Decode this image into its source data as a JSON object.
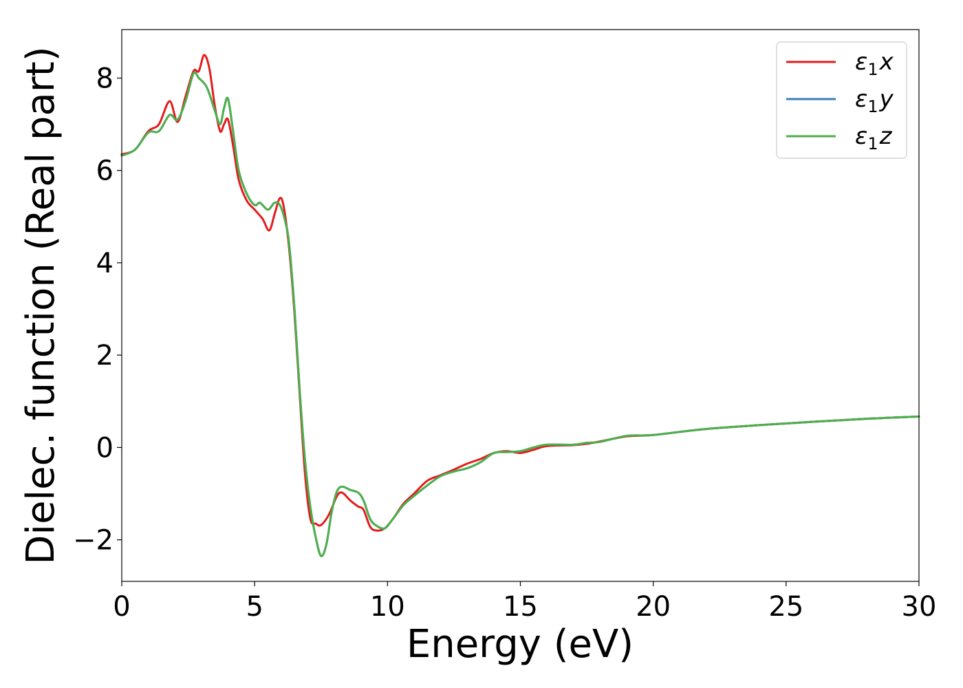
{
  "chart_data": {
    "type": "line",
    "title": "",
    "xlabel": "Energy (eV)",
    "ylabel": "Dielec. function (Real part)",
    "xlim": [
      0,
      30
    ],
    "ylim": [
      -2.9,
      9.05
    ],
    "xticks": [
      0,
      5,
      10,
      15,
      20,
      25,
      30
    ],
    "xtick_labels": [
      "0",
      "5",
      "10",
      "15",
      "20",
      "25",
      "30"
    ],
    "yticks": [
      -2,
      0,
      2,
      4,
      6,
      8
    ],
    "ytick_labels": [
      "−2",
      "0",
      "2",
      "4",
      "6",
      "8"
    ],
    "grid": false,
    "legend_position": "top-right",
    "series": [
      {
        "name": "ε₁x",
        "legend_main": "ε",
        "legend_sub": "1",
        "legend_var": "x",
        "color": "#e41a1c",
        "points": [
          [
            0,
            6.35
          ],
          [
            0.5,
            6.45
          ],
          [
            1.0,
            6.85
          ],
          [
            1.4,
            7.0
          ],
          [
            1.8,
            7.5
          ],
          [
            2.1,
            7.05
          ],
          [
            2.4,
            7.6
          ],
          [
            2.7,
            8.15
          ],
          [
            2.9,
            8.15
          ],
          [
            3.1,
            8.5
          ],
          [
            3.3,
            8.2
          ],
          [
            3.5,
            7.4
          ],
          [
            3.7,
            6.85
          ],
          [
            3.85,
            7.0
          ],
          [
            4.0,
            7.1
          ],
          [
            4.2,
            6.5
          ],
          [
            4.4,
            5.8
          ],
          [
            4.7,
            5.35
          ],
          [
            5.0,
            5.15
          ],
          [
            5.3,
            4.95
          ],
          [
            5.55,
            4.7
          ],
          [
            5.75,
            5.05
          ],
          [
            5.95,
            5.4
          ],
          [
            6.1,
            5.2
          ],
          [
            6.3,
            4.3
          ],
          [
            6.5,
            2.9
          ],
          [
            6.7,
            1.1
          ],
          [
            6.9,
            -0.6
          ],
          [
            7.1,
            -1.55
          ],
          [
            7.3,
            -1.65
          ],
          [
            7.5,
            -1.68
          ],
          [
            7.8,
            -1.45
          ],
          [
            8.1,
            -1.05
          ],
          [
            8.3,
            -0.98
          ],
          [
            8.6,
            -1.15
          ],
          [
            8.9,
            -1.28
          ],
          [
            9.1,
            -1.35
          ],
          [
            9.35,
            -1.72
          ],
          [
            9.6,
            -1.8
          ],
          [
            9.9,
            -1.75
          ],
          [
            10.2,
            -1.55
          ],
          [
            10.6,
            -1.22
          ],
          [
            11.0,
            -1.0
          ],
          [
            11.5,
            -0.72
          ],
          [
            12.0,
            -0.6
          ],
          [
            12.5,
            -0.48
          ],
          [
            13.0,
            -0.35
          ],
          [
            13.5,
            -0.25
          ],
          [
            14.0,
            -0.12
          ],
          [
            14.5,
            -0.08
          ],
          [
            15.0,
            -0.12
          ],
          [
            15.5,
            -0.05
          ],
          [
            16.0,
            0.03
          ],
          [
            17.0,
            0.05
          ],
          [
            17.5,
            0.08
          ],
          [
            18.0,
            0.13
          ],
          [
            19.0,
            0.24
          ],
          [
            20.0,
            0.27
          ],
          [
            22.0,
            0.4
          ],
          [
            25.0,
            0.52
          ],
          [
            28.0,
            0.62
          ],
          [
            30.0,
            0.67
          ]
        ]
      },
      {
        "name": "ε₁y",
        "legend_main": "ε",
        "legend_sub": "1",
        "legend_var": "y",
        "color": "#377eb8",
        "points": [
          [
            0,
            6.32
          ],
          [
            0.5,
            6.45
          ],
          [
            1.0,
            6.82
          ],
          [
            1.4,
            6.85
          ],
          [
            1.8,
            7.2
          ],
          [
            2.1,
            7.1
          ],
          [
            2.4,
            7.5
          ],
          [
            2.7,
            8.1
          ],
          [
            2.9,
            8.0
          ],
          [
            3.2,
            7.8
          ],
          [
            3.5,
            7.3
          ],
          [
            3.7,
            7.0
          ],
          [
            3.85,
            7.35
          ],
          [
            4.0,
            7.55
          ],
          [
            4.2,
            6.8
          ],
          [
            4.4,
            6.0
          ],
          [
            4.7,
            5.5
          ],
          [
            5.0,
            5.25
          ],
          [
            5.2,
            5.3
          ],
          [
            5.5,
            5.15
          ],
          [
            5.75,
            5.3
          ],
          [
            5.95,
            5.25
          ],
          [
            6.15,
            4.9
          ],
          [
            6.3,
            4.4
          ],
          [
            6.5,
            3.0
          ],
          [
            6.7,
            1.2
          ],
          [
            6.9,
            -0.3
          ],
          [
            7.1,
            -1.3
          ],
          [
            7.3,
            -1.95
          ],
          [
            7.5,
            -2.35
          ],
          [
            7.7,
            -2.1
          ],
          [
            7.9,
            -1.4
          ],
          [
            8.1,
            -0.95
          ],
          [
            8.3,
            -0.85
          ],
          [
            8.6,
            -0.92
          ],
          [
            8.9,
            -0.98
          ],
          [
            9.1,
            -1.15
          ],
          [
            9.35,
            -1.55
          ],
          [
            9.6,
            -1.7
          ],
          [
            9.9,
            -1.75
          ],
          [
            10.2,
            -1.55
          ],
          [
            10.6,
            -1.25
          ],
          [
            11.0,
            -1.05
          ],
          [
            11.5,
            -0.82
          ],
          [
            12.0,
            -0.62
          ],
          [
            12.5,
            -0.52
          ],
          [
            13.0,
            -0.45
          ],
          [
            13.5,
            -0.32
          ],
          [
            14.0,
            -0.12
          ],
          [
            14.5,
            -0.1
          ],
          [
            15.0,
            -0.08
          ],
          [
            15.5,
            0.0
          ],
          [
            16.0,
            0.06
          ],
          [
            17.0,
            0.06
          ],
          [
            17.5,
            0.1
          ],
          [
            18.0,
            0.12
          ],
          [
            19.0,
            0.25
          ],
          [
            20.0,
            0.27
          ],
          [
            22.0,
            0.4
          ],
          [
            25.0,
            0.52
          ],
          [
            28.0,
            0.62
          ],
          [
            30.0,
            0.67
          ]
        ]
      },
      {
        "name": "ε₁z",
        "legend_main": "ε",
        "legend_sub": "1",
        "legend_var": "z",
        "color": "#4daf4a",
        "points": [
          [
            0,
            6.32
          ],
          [
            0.5,
            6.45
          ],
          [
            1.0,
            6.82
          ],
          [
            1.4,
            6.85
          ],
          [
            1.8,
            7.2
          ],
          [
            2.1,
            7.1
          ],
          [
            2.4,
            7.5
          ],
          [
            2.7,
            8.1
          ],
          [
            2.9,
            8.0
          ],
          [
            3.2,
            7.8
          ],
          [
            3.5,
            7.3
          ],
          [
            3.7,
            7.0
          ],
          [
            3.85,
            7.35
          ],
          [
            4.0,
            7.55
          ],
          [
            4.2,
            6.8
          ],
          [
            4.4,
            6.0
          ],
          [
            4.7,
            5.5
          ],
          [
            5.0,
            5.25
          ],
          [
            5.2,
            5.3
          ],
          [
            5.5,
            5.15
          ],
          [
            5.75,
            5.3
          ],
          [
            5.95,
            5.25
          ],
          [
            6.15,
            4.9
          ],
          [
            6.3,
            4.4
          ],
          [
            6.5,
            3.0
          ],
          [
            6.7,
            1.2
          ],
          [
            6.9,
            -0.3
          ],
          [
            7.1,
            -1.3
          ],
          [
            7.3,
            -1.95
          ],
          [
            7.5,
            -2.35
          ],
          [
            7.7,
            -2.1
          ],
          [
            7.9,
            -1.4
          ],
          [
            8.1,
            -0.95
          ],
          [
            8.3,
            -0.85
          ],
          [
            8.6,
            -0.92
          ],
          [
            8.9,
            -0.98
          ],
          [
            9.1,
            -1.15
          ],
          [
            9.35,
            -1.55
          ],
          [
            9.6,
            -1.7
          ],
          [
            9.9,
            -1.75
          ],
          [
            10.2,
            -1.55
          ],
          [
            10.6,
            -1.25
          ],
          [
            11.0,
            -1.05
          ],
          [
            11.5,
            -0.82
          ],
          [
            12.0,
            -0.62
          ],
          [
            12.5,
            -0.52
          ],
          [
            13.0,
            -0.45
          ],
          [
            13.5,
            -0.32
          ],
          [
            14.0,
            -0.12
          ],
          [
            14.5,
            -0.1
          ],
          [
            15.0,
            -0.08
          ],
          [
            15.5,
            0.0
          ],
          [
            16.0,
            0.06
          ],
          [
            17.0,
            0.06
          ],
          [
            17.5,
            0.1
          ],
          [
            18.0,
            0.12
          ],
          [
            19.0,
            0.25
          ],
          [
            20.0,
            0.27
          ],
          [
            22.0,
            0.4
          ],
          [
            25.0,
            0.52
          ],
          [
            28.0,
            0.62
          ],
          [
            30.0,
            0.67
          ]
        ]
      }
    ]
  }
}
